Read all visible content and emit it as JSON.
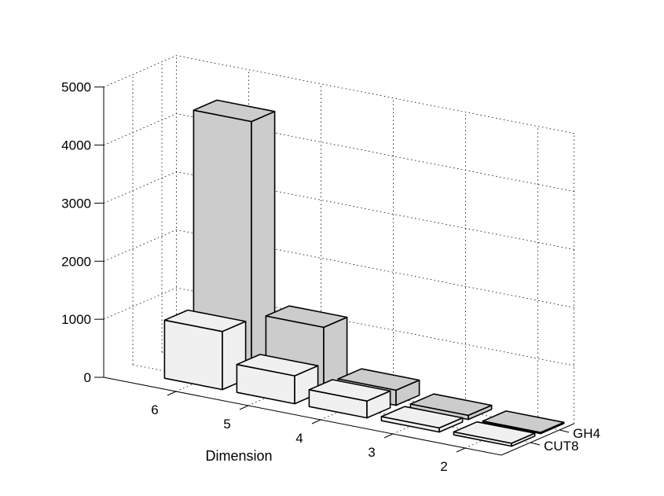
{
  "chart_data": {
    "type": "bar",
    "title": "",
    "xlabel": "Dimension",
    "ylabel": "",
    "categories": [
      "6",
      "5",
      "4",
      "3",
      "2"
    ],
    "series": [
      {
        "name": "CUT8",
        "values": [
          1000,
          480,
          290,
          70,
          50
        ]
      },
      {
        "name": "GH4",
        "values": [
          4400,
          1100,
          260,
          70,
          20
        ]
      }
    ],
    "zlim": [
      0,
      5000
    ],
    "zticks": [
      "0",
      "1000",
      "2000",
      "3000",
      "4000",
      "5000"
    ],
    "grid": true,
    "colors": {
      "CUT8": "#f0f0f0",
      "GH4": "#cccccc"
    }
  }
}
